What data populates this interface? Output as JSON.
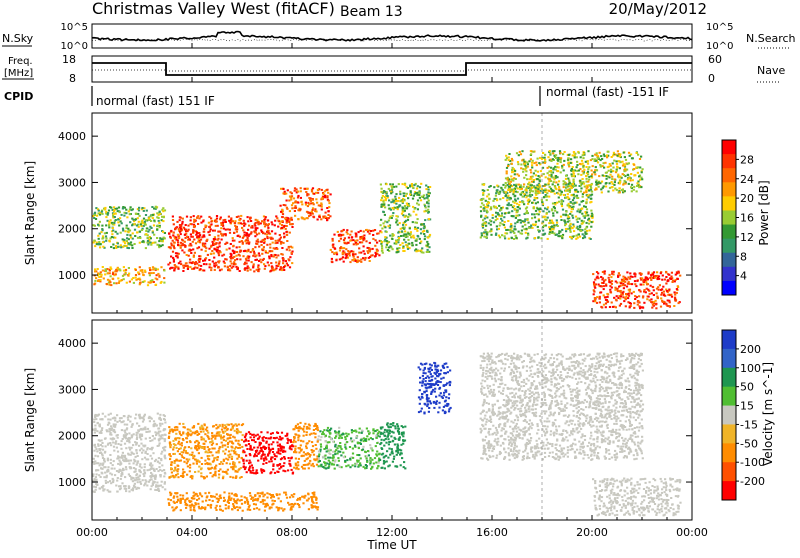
{
  "header": {
    "title": "Christmas Valley West (fitACF)",
    "beam": "Beam 13",
    "date": "20/May/2012"
  },
  "panels": {
    "nsky": {
      "left_label": "N.Sky",
      "left_ticks": [
        "10^5",
        "10^0"
      ],
      "right_label": "N.Search",
      "right_ticks": [
        "10^5",
        "10^0"
      ]
    },
    "freq": {
      "left_label_1": "Freq.",
      "left_label_2": "[MHz]",
      "left_ticks": [
        "18",
        "8"
      ],
      "right_label": "Nave",
      "right_ticks": [
        "60",
        "0"
      ]
    },
    "cpid": {
      "label": "CPID",
      "mode_1": "normal (fast) 151 IF",
      "mode_2": "normal (fast) -151 IF"
    }
  },
  "axes": {
    "ylabel": "Slant Range [km]",
    "yticks": [
      "1000",
      "2000",
      "3000",
      "4000"
    ],
    "xlabel": "Time UT",
    "xticks": [
      "00:00",
      "04:00",
      "08:00",
      "12:00",
      "16:00",
      "20:00",
      "00:00"
    ]
  },
  "colorbars": {
    "power": {
      "label": "Power [dB]",
      "ticks": [
        "28",
        "24",
        "20",
        "16",
        "12",
        "8",
        "4"
      ],
      "colors": [
        "#ff0000",
        "#ff3300",
        "#ff6600",
        "#ff9900",
        "#ffcc00",
        "#99cc33",
        "#339933",
        "#339966",
        "#336699",
        "#3333cc",
        "#0000ff"
      ]
    },
    "velocity": {
      "label": "Velocity [m s^-1]",
      "ticks": [
        "200",
        "100",
        "50",
        "15",
        "-15",
        "-50",
        "-100",
        "-200"
      ],
      "colors": [
        "#1e3cc8",
        "#3264c8",
        "#1e9650",
        "#50be32",
        "#c8c8c0",
        "#f0b428",
        "#ff8c00",
        "#ff5000",
        "#ff0000"
      ]
    }
  },
  "chart_data": [
    {
      "type": "heatmap",
      "title": "Power",
      "xlabel": "Time UT",
      "ylabel": "Slant Range [km]",
      "xlim": [
        "00:00",
        "24:00"
      ],
      "ylim": [
        180,
        4500
      ],
      "colorbar": "Power [dB]",
      "colorbar_range": [
        0,
        30
      ],
      "regions": [
        {
          "t": [
            0.0,
            2.9
          ],
          "r": [
            1600,
            2500
          ],
          "value": 14
        },
        {
          "t": [
            0.0,
            2.9
          ],
          "r": [
            800,
            1200
          ],
          "value": 20
        },
        {
          "t": [
            3.0,
            8.0
          ],
          "r": [
            1100,
            2300
          ],
          "value": 26
        },
        {
          "t": [
            7.5,
            9.5
          ],
          "r": [
            2200,
            2900
          ],
          "value": 24
        },
        {
          "t": [
            9.5,
            11.5
          ],
          "r": [
            1300,
            2000
          ],
          "value": 26
        },
        {
          "t": [
            11.5,
            13.5
          ],
          "r": [
            1500,
            3000
          ],
          "value": 14
        },
        {
          "t": [
            15.5,
            20.0
          ],
          "r": [
            1800,
            3000
          ],
          "value": 14
        },
        {
          "t": [
            16.5,
            22.0
          ],
          "r": [
            2800,
            3700
          ],
          "value": 16
        },
        {
          "t": [
            20.0,
            23.5
          ],
          "r": [
            300,
            1100
          ],
          "value": 26
        }
      ]
    },
    {
      "type": "heatmap",
      "title": "Velocity",
      "xlabel": "Time UT",
      "ylabel": "Slant Range [km]",
      "xlim": [
        "00:00",
        "24:00"
      ],
      "ylim": [
        180,
        4500
      ],
      "colorbar": "Velocity [m s^-1]",
      "colorbar_range": [
        -200,
        200
      ],
      "regions": [
        {
          "t": [
            0.0,
            2.9
          ],
          "r": [
            800,
            2500
          ],
          "value": 0
        },
        {
          "t": [
            3.0,
            6.0
          ],
          "r": [
            1100,
            2300
          ],
          "value": -40
        },
        {
          "t": [
            6.0,
            8.0
          ],
          "r": [
            1200,
            2100
          ],
          "value": -180
        },
        {
          "t": [
            8.0,
            9.0
          ],
          "r": [
            1300,
            2300
          ],
          "value": -60
        },
        {
          "t": [
            9.0,
            11.5
          ],
          "r": [
            1300,
            2200
          ],
          "value": 25
        },
        {
          "t": [
            11.5,
            12.5
          ],
          "r": [
            1300,
            2300
          ],
          "value": 60
        },
        {
          "t": [
            13.0,
            14.3
          ],
          "r": [
            2500,
            3600
          ],
          "value": 210
        },
        {
          "t": [
            15.5,
            22.0
          ],
          "r": [
            1500,
            3800
          ],
          "value": 0
        },
        {
          "t": [
            20.0,
            23.5
          ],
          "r": [
            300,
            1100
          ],
          "value": 0
        },
        {
          "t": [
            3.0,
            9.0
          ],
          "r": [
            400,
            800
          ],
          "value": -60
        }
      ]
    }
  ]
}
